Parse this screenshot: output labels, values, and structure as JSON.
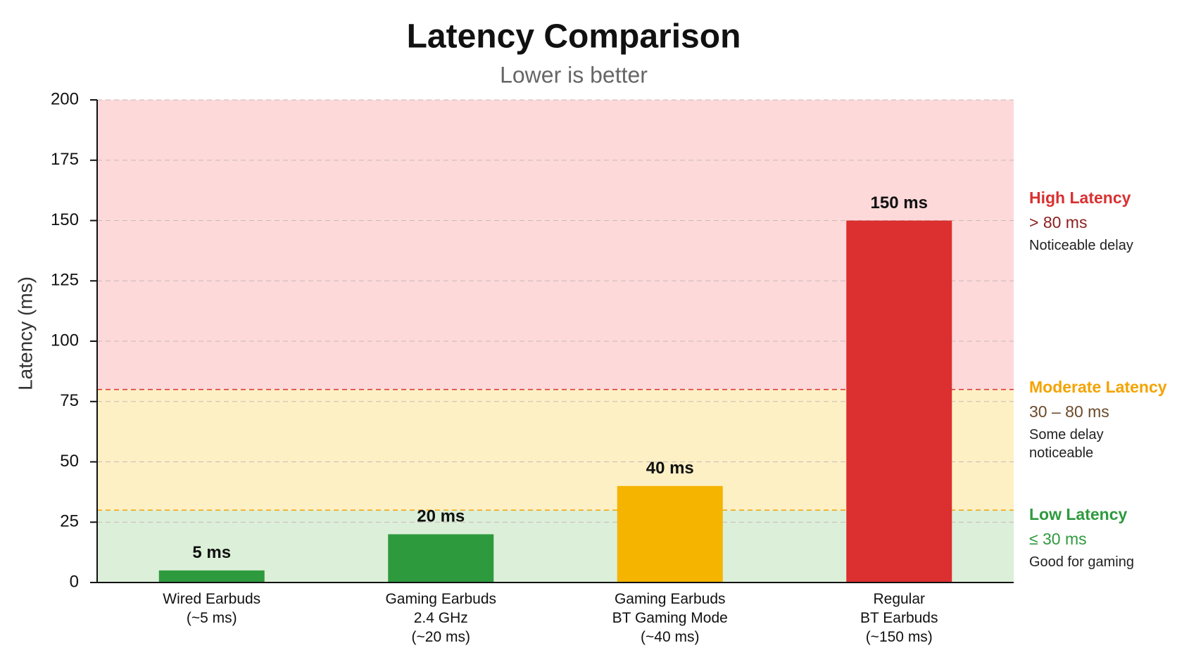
{
  "chart_data": {
    "type": "bar",
    "title": "Latency Comparison",
    "subtitle": "Lower is better",
    "y_label": "Latency (ms)",
    "categories": [
      "Wired Earbuds\n(~5 ms)",
      "Gaming Earbuds\n2.4 GHz\n(~20 ms)",
      "Gaming Earbuds\nBT Gaming Mode\n(~40 ms)",
      "Regular\nBT Earbuds\n(~150 ms)"
    ],
    "values": [
      5,
      20,
      40,
      150
    ],
    "value_labels": [
      "5 ms",
      "20 ms",
      "40 ms",
      "150 ms"
    ],
    "colors": [
      "#2e9a3e",
      "#2e9a3e",
      "#f4b400",
      "#dc2f2f"
    ],
    "ylim": [
      0,
      200
    ],
    "yticks": [
      0,
      25,
      50,
      75,
      100,
      125,
      150,
      175,
      200
    ],
    "grid": true,
    "zones": [
      {
        "name": "High Latency",
        "range": "> 80 ms",
        "note": "Noticeable delay",
        "from": 80,
        "to": 200,
        "color": "#fdd9da",
        "text_color": "#d93030",
        "range_color": "#8b1f1f"
      },
      {
        "name": "Moderate Latency",
        "range": "30 – 80 ms",
        "note": "Some delay\nnoticeable",
        "from": 30,
        "to": 80,
        "color": "#fdf0c5",
        "text_color": "#f4a300",
        "range_color": "#6b4a2a"
      },
      {
        "name": "Low Latency",
        "range": "≤ 30 ms",
        "note": "Good for gaming",
        "from": 0,
        "to": 30,
        "color": "#dcefd9",
        "text_color": "#2e9a3e",
        "range_color": "#2e9a3e"
      }
    ]
  }
}
